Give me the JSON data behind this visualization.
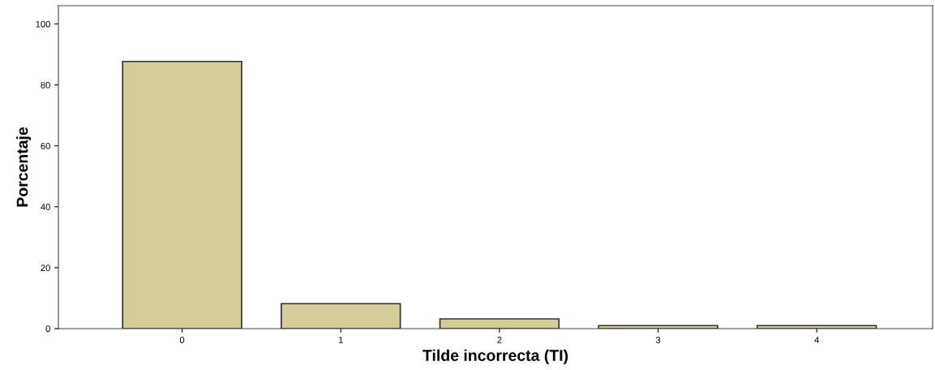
{
  "chart_data": {
    "type": "bar",
    "xlabel": "Tilde incorrecta (TI)",
    "ylabel": "Porcentaje",
    "categories": [
      "0",
      "1",
      "2",
      "3",
      "4"
    ],
    "values": [
      87.7,
      8.2,
      3.2,
      1.0,
      1.0
    ],
    "color": "#d3ce97",
    "ylim": [
      0,
      106
    ],
    "yticks": [
      0,
      20,
      40,
      60,
      80,
      100
    ],
    "grid": false
  }
}
